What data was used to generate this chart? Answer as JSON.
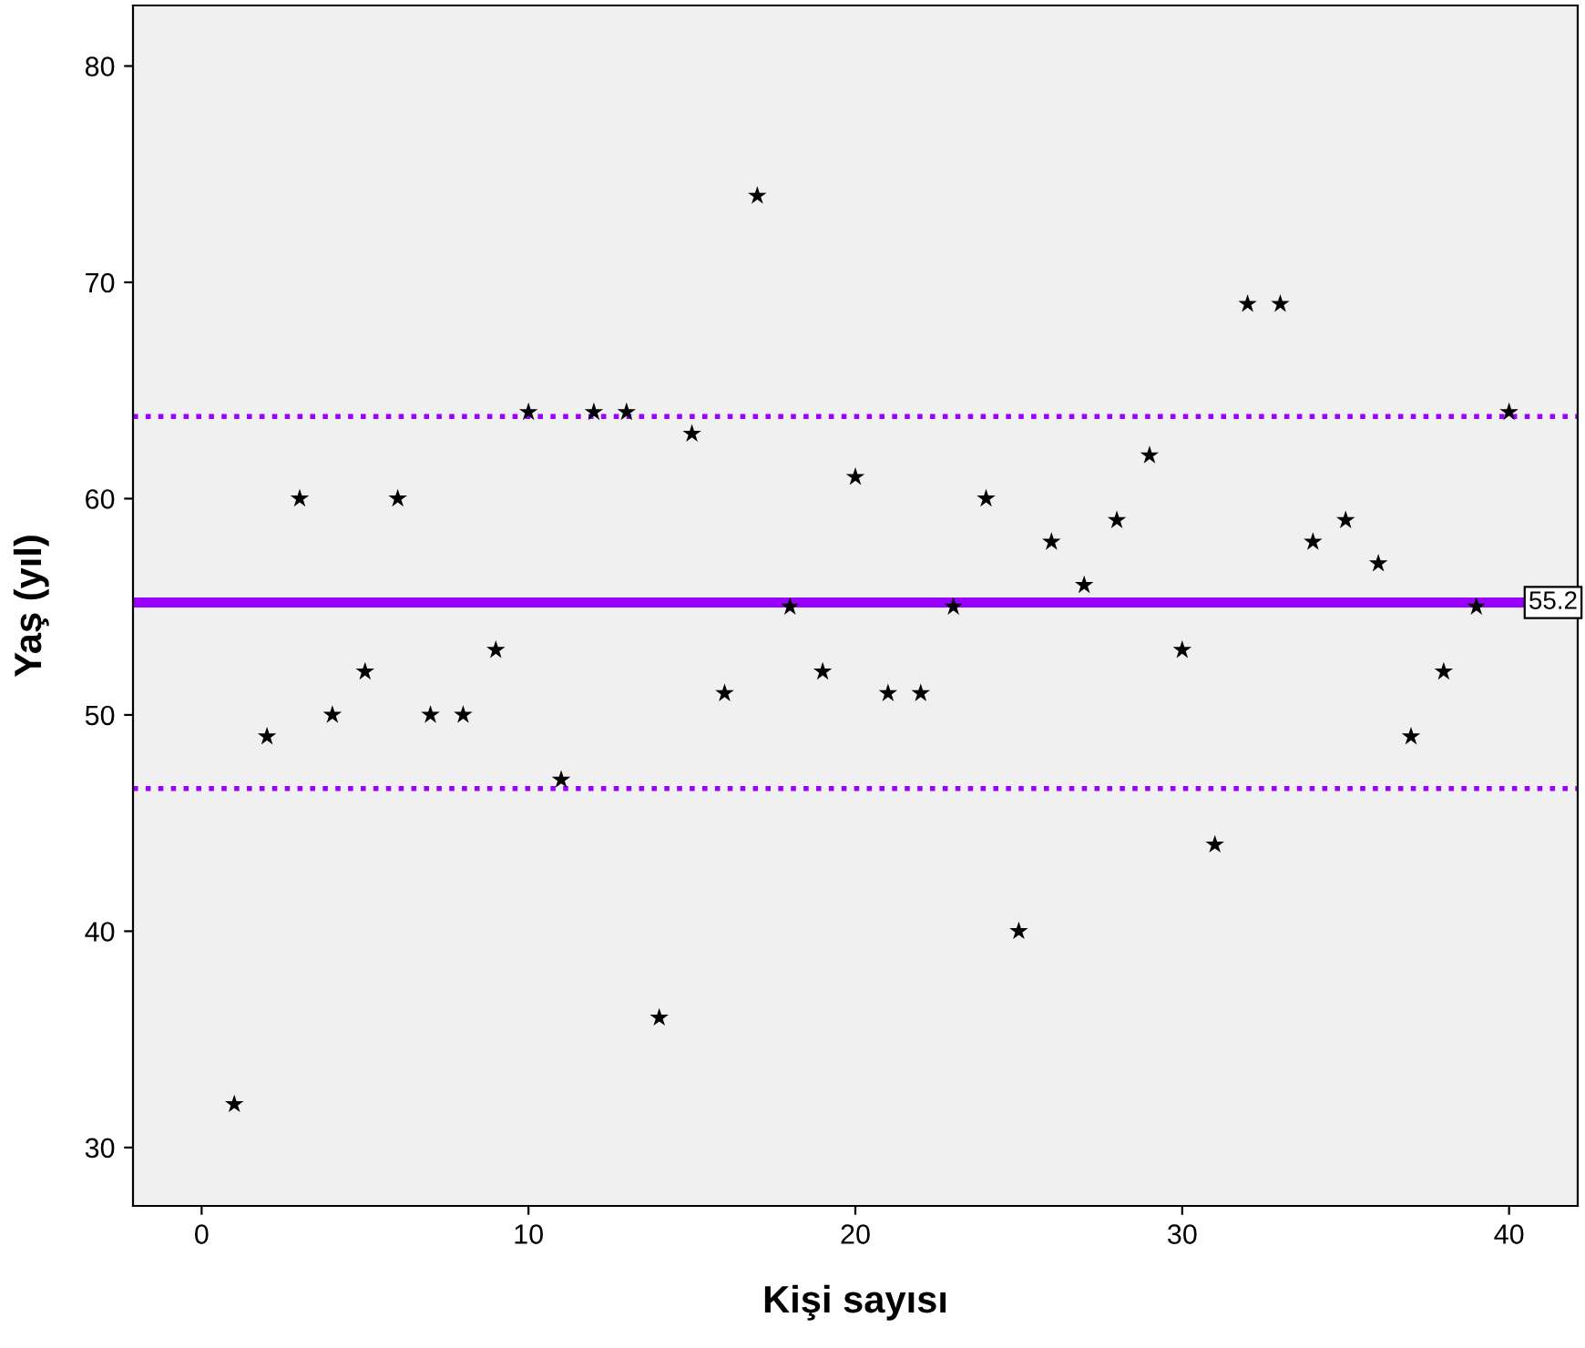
{
  "chart_data": {
    "type": "scatter",
    "xlabel": "Kişi sayısı",
    "ylabel": "Yaş (yıl)",
    "x": [
      1,
      2,
      3,
      4,
      5,
      6,
      7,
      8,
      9,
      10,
      11,
      12,
      13,
      14,
      15,
      16,
      17,
      18,
      19,
      20,
      21,
      22,
      23,
      24,
      25,
      26,
      27,
      28,
      29,
      30,
      31,
      32,
      33,
      34,
      35,
      36,
      37,
      38,
      39,
      40
    ],
    "series": [
      {
        "color": "#000000",
        "values": [
          32,
          49,
          60,
          50,
          52,
          60,
          50,
          50,
          53,
          64,
          47,
          64,
          64,
          36,
          63,
          51,
          74,
          55,
          52,
          61,
          51,
          51,
          55,
          60,
          40,
          58,
          56,
          59,
          62,
          53,
          44,
          69,
          69,
          58,
          59,
          57,
          49,
          52,
          55,
          64
        ]
      }
    ],
    "marker": "star",
    "xlim": [
      -2.1,
      42.1
    ],
    "ylim": [
      27.3,
      82.8
    ],
    "xticks": [
      0,
      10,
      20,
      30,
      40
    ],
    "yticks": [
      30,
      40,
      50,
      60,
      70,
      80
    ],
    "ref_lines": [
      {
        "axis": "y",
        "value": 55.2,
        "label": "55.2",
        "color": "#9900ff",
        "line_style": "solid"
      },
      {
        "axis": "y",
        "value": 63.8,
        "color": "#9900ff",
        "line_style": "dotted"
      },
      {
        "axis": "y",
        "value": 46.6,
        "color": "#9900ff",
        "line_style": "dotted"
      }
    ]
  }
}
